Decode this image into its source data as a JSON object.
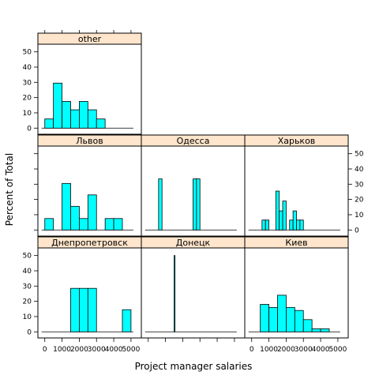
{
  "chart_data": {
    "type": "histogram",
    "xlabel": "Project manager salaries",
    "ylabel": "Percent of Total",
    "xlim": [
      -400,
      5600
    ],
    "ylim": [
      -4,
      55
    ],
    "x_ticks": [
      0,
      1000,
      2000,
      3000,
      4000,
      5000
    ],
    "y_ticks": [
      0,
      10,
      20,
      30,
      40,
      50
    ],
    "bar_color": "#00ffff",
    "strip_color": "#ffe5cc",
    "panels": [
      {
        "name": "other",
        "row": 0,
        "col": 0,
        "bins": [
          {
            "x0": 0,
            "x1": 500,
            "y": 6
          },
          {
            "x0": 500,
            "x1": 1000,
            "y": 29.5
          },
          {
            "x0": 1000,
            "x1": 1500,
            "y": 17.5
          },
          {
            "x0": 1500,
            "x1": 2000,
            "y": 12
          },
          {
            "x0": 2000,
            "x1": 2500,
            "y": 17.5
          },
          {
            "x0": 2500,
            "x1": 3000,
            "y": 12
          },
          {
            "x0": 3000,
            "x1": 3500,
            "y": 6
          }
        ]
      },
      {
        "name": "Львов",
        "row": 1,
        "col": 0,
        "bins": [
          {
            "x0": 0,
            "x1": 500,
            "y": 7.5
          },
          {
            "x0": 1000,
            "x1": 1500,
            "y": 30.5
          },
          {
            "x0": 1500,
            "x1": 2000,
            "y": 15.5
          },
          {
            "x0": 2000,
            "x1": 2500,
            "y": 7.5
          },
          {
            "x0": 2500,
            "x1": 3000,
            "y": 23
          },
          {
            "x0": 3500,
            "x1": 4000,
            "y": 7.5
          },
          {
            "x0": 4000,
            "x1": 4500,
            "y": 7.5
          }
        ]
      },
      {
        "name": "Одесса",
        "row": 1,
        "col": 1,
        "bins": [
          {
            "x0": 600,
            "x1": 800,
            "y": 33.5
          },
          {
            "x0": 2600,
            "x1": 2800,
            "y": 33.5
          },
          {
            "x0": 2800,
            "x1": 3000,
            "y": 33.5
          }
        ]
      },
      {
        "name": "Харьков",
        "row": 1,
        "col": 2,
        "bins": [
          {
            "x0": 600,
            "x1": 800,
            "y": 6.5
          },
          {
            "x0": 800,
            "x1": 1000,
            "y": 6.5
          },
          {
            "x0": 1400,
            "x1": 1600,
            "y": 25.5
          },
          {
            "x0": 1600,
            "x1": 1800,
            "y": 12.5
          },
          {
            "x0": 1800,
            "x1": 2000,
            "y": 19
          },
          {
            "x0": 2200,
            "x1": 2400,
            "y": 6.5
          },
          {
            "x0": 2400,
            "x1": 2600,
            "y": 12.5
          },
          {
            "x0": 2600,
            "x1": 2800,
            "y": 6.5
          },
          {
            "x0": 2800,
            "x1": 3000,
            "y": 6.5
          }
        ]
      },
      {
        "name": "Днепропетровск",
        "row": 2,
        "col": 0,
        "bins": [
          {
            "x0": 1500,
            "x1": 2000,
            "y": 28.5
          },
          {
            "x0": 2000,
            "x1": 2500,
            "y": 28.5
          },
          {
            "x0": 2500,
            "x1": 3000,
            "y": 28.5
          },
          {
            "x0": 3000,
            "x1": 3500,
            "y": 0
          },
          {
            "x0": 3500,
            "x1": 4000,
            "y": 0
          },
          {
            "x0": 4500,
            "x1": 5000,
            "y": 14.5
          }
        ]
      },
      {
        "name": "Донецк",
        "row": 2,
        "col": 1,
        "bins": [
          {
            "x0": 1500,
            "x1": 1520,
            "y": 50
          }
        ]
      },
      {
        "name": "Киев",
        "row": 2,
        "col": 2,
        "bins": [
          {
            "x0": 500,
            "x1": 1000,
            "y": 18
          },
          {
            "x0": 1000,
            "x1": 1500,
            "y": 16
          },
          {
            "x0": 1500,
            "x1": 2000,
            "y": 24
          },
          {
            "x0": 2000,
            "x1": 2500,
            "y": 16
          },
          {
            "x0": 2500,
            "x1": 3000,
            "y": 14
          },
          {
            "x0": 3000,
            "x1": 3500,
            "y": 8
          },
          {
            "x0": 3500,
            "x1": 4000,
            "y": 2
          },
          {
            "x0": 4000,
            "x1": 4500,
            "y": 2
          }
        ]
      }
    ]
  }
}
